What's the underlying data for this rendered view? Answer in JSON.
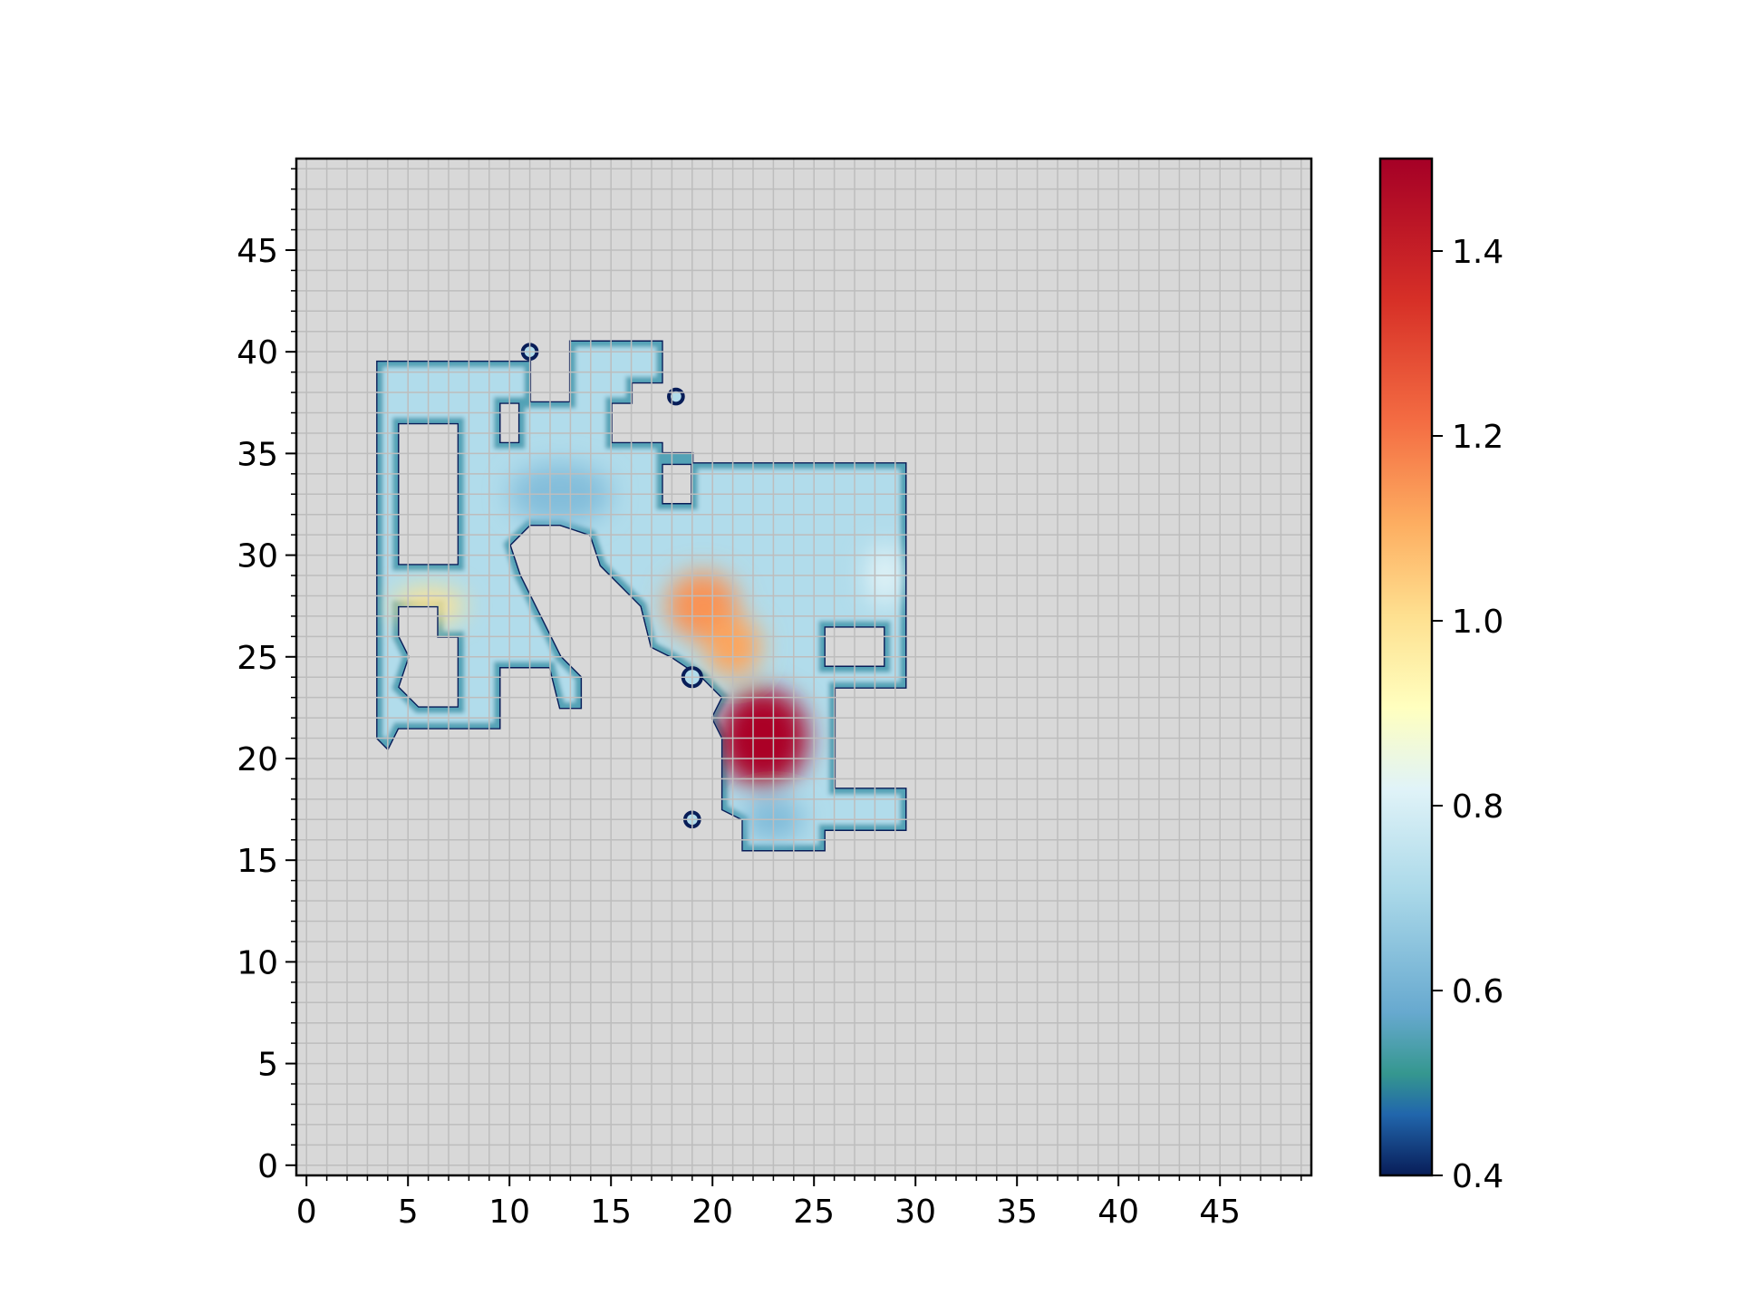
{
  "chart_data": {
    "type": "heatmap",
    "title": "",
    "xlabel": "",
    "ylabel": "",
    "xlim": [
      -0.5,
      49.5
    ],
    "ylim": [
      -0.5,
      49.5
    ],
    "x_ticks": [
      0,
      5,
      10,
      15,
      20,
      25,
      30,
      35,
      40,
      45
    ],
    "y_ticks": [
      0,
      5,
      10,
      15,
      20,
      25,
      30,
      35,
      40,
      45
    ],
    "x_tick_labels": [
      "0",
      "5",
      "10",
      "15",
      "20",
      "25",
      "30",
      "35",
      "40",
      "45"
    ],
    "y_tick_labels": [
      "0",
      "5",
      "10",
      "15",
      "20",
      "25",
      "30",
      "35",
      "40",
      "45"
    ],
    "grid": true,
    "background_color": "#d8d8d8",
    "grid_color": "#bdbdbd",
    "colormap": "RdYlBu_r",
    "colorbar": {
      "range": [
        0.4,
        1.5
      ],
      "ticks": [
        0.4,
        0.6,
        0.8,
        1.0,
        1.2,
        1.4
      ],
      "tick_labels": [
        "0.4",
        "0.6",
        "0.8",
        "1.0",
        "1.2",
        "1.4"
      ],
      "placement": "right"
    },
    "default_interior_value": 0.72,
    "domain_outer": [
      [
        3.5,
        39.5
      ],
      [
        11.0,
        39.5
      ],
      [
        11.0,
        37.5
      ],
      [
        13.0,
        37.5
      ],
      [
        13.0,
        40.5
      ],
      [
        17.5,
        40.5
      ],
      [
        17.5,
        38.5
      ],
      [
        16.0,
        38.5
      ],
      [
        16.0,
        37.5
      ],
      [
        15.0,
        37.5
      ],
      [
        15.0,
        35.5
      ],
      [
        17.5,
        35.5
      ],
      [
        17.5,
        34.5
      ],
      [
        29.5,
        34.5
      ],
      [
        29.5,
        23.5
      ],
      [
        26.0,
        23.5
      ],
      [
        26.0,
        18.5
      ],
      [
        29.5,
        18.5
      ],
      [
        29.5,
        16.5
      ],
      [
        25.5,
        16.5
      ],
      [
        25.5,
        15.5
      ],
      [
        21.5,
        15.5
      ],
      [
        21.5,
        17.0
      ],
      [
        20.5,
        17.5
      ],
      [
        20.5,
        21.0
      ],
      [
        20.0,
        22.0
      ],
      [
        20.5,
        23.0
      ],
      [
        19.5,
        24.0
      ],
      [
        18.0,
        25.0
      ],
      [
        17.0,
        25.5
      ],
      [
        16.5,
        27.5
      ],
      [
        15.5,
        28.5
      ],
      [
        14.5,
        29.5
      ],
      [
        14.0,
        31.0
      ],
      [
        12.5,
        31.5
      ],
      [
        11.0,
        31.5
      ],
      [
        10.0,
        30.5
      ],
      [
        10.5,
        29.0
      ],
      [
        11.5,
        27.0
      ],
      [
        12.5,
        25.0
      ],
      [
        13.5,
        24.0
      ],
      [
        13.5,
        22.5
      ],
      [
        12.5,
        22.5
      ],
      [
        12.0,
        24.5
      ],
      [
        9.5,
        24.5
      ],
      [
        9.5,
        21.5
      ],
      [
        4.5,
        21.5
      ],
      [
        4.0,
        20.5
      ],
      [
        3.5,
        21.0
      ],
      [
        3.5,
        39.5
      ]
    ],
    "domain_holes": [
      [
        [
          4.5,
          36.5
        ],
        [
          7.5,
          36.5
        ],
        [
          7.5,
          29.5
        ],
        [
          4.5,
          29.5
        ]
      ],
      [
        [
          9.5,
          37.5
        ],
        [
          10.5,
          37.5
        ],
        [
          10.5,
          35.5
        ],
        [
          9.5,
          35.5
        ]
      ],
      [
        [
          17.5,
          35.0
        ],
        [
          19.0,
          35.0
        ],
        [
          19.0,
          32.5
        ],
        [
          17.5,
          32.5
        ]
      ],
      [
        [
          25.5,
          26.5
        ],
        [
          28.5,
          26.5
        ],
        [
          28.5,
          24.5
        ],
        [
          25.5,
          24.5
        ]
      ],
      [
        [
          4.5,
          27.5
        ],
        [
          6.5,
          27.5
        ],
        [
          6.5,
          26.0
        ],
        [
          7.5,
          26.0
        ],
        [
          7.5,
          22.5
        ],
        [
          5.5,
          22.5
        ],
        [
          4.5,
          23.5
        ],
        [
          5.0,
          25.0
        ],
        [
          4.5,
          26.0
        ]
      ]
    ],
    "domain_islands": [
      {
        "x": 11.0,
        "y": 40.0,
        "r": 0.35
      },
      {
        "x": 18.2,
        "y": 37.8,
        "r": 0.35
      },
      {
        "x": 19.0,
        "y": 24.0,
        "r": 0.45
      },
      {
        "x": 19.0,
        "y": 17.0,
        "r": 0.35
      }
    ],
    "hot_spots": [
      {
        "x": 22.5,
        "y": 21.0,
        "sx": 2.2,
        "sy": 2.4,
        "value": 1.48
      },
      {
        "x": 19.5,
        "y": 27.5,
        "sx": 1.8,
        "sy": 1.7,
        "value": 1.15
      },
      {
        "x": 21.0,
        "y": 25.5,
        "sx": 1.4,
        "sy": 1.5,
        "value": 1.12
      },
      {
        "x": 6.0,
        "y": 27.5,
        "sx": 1.8,
        "sy": 0.9,
        "value": 1.0
      },
      {
        "x": 28.5,
        "y": 29.0,
        "sx": 0.9,
        "sy": 1.5,
        "value": 0.82
      },
      {
        "x": 12.5,
        "y": 33.0,
        "sx": 2.5,
        "sy": 1.5,
        "value": 0.63
      },
      {
        "x": 23.0,
        "y": 17.0,
        "sx": 1.5,
        "sy": 1.0,
        "value": 0.62
      }
    ]
  }
}
